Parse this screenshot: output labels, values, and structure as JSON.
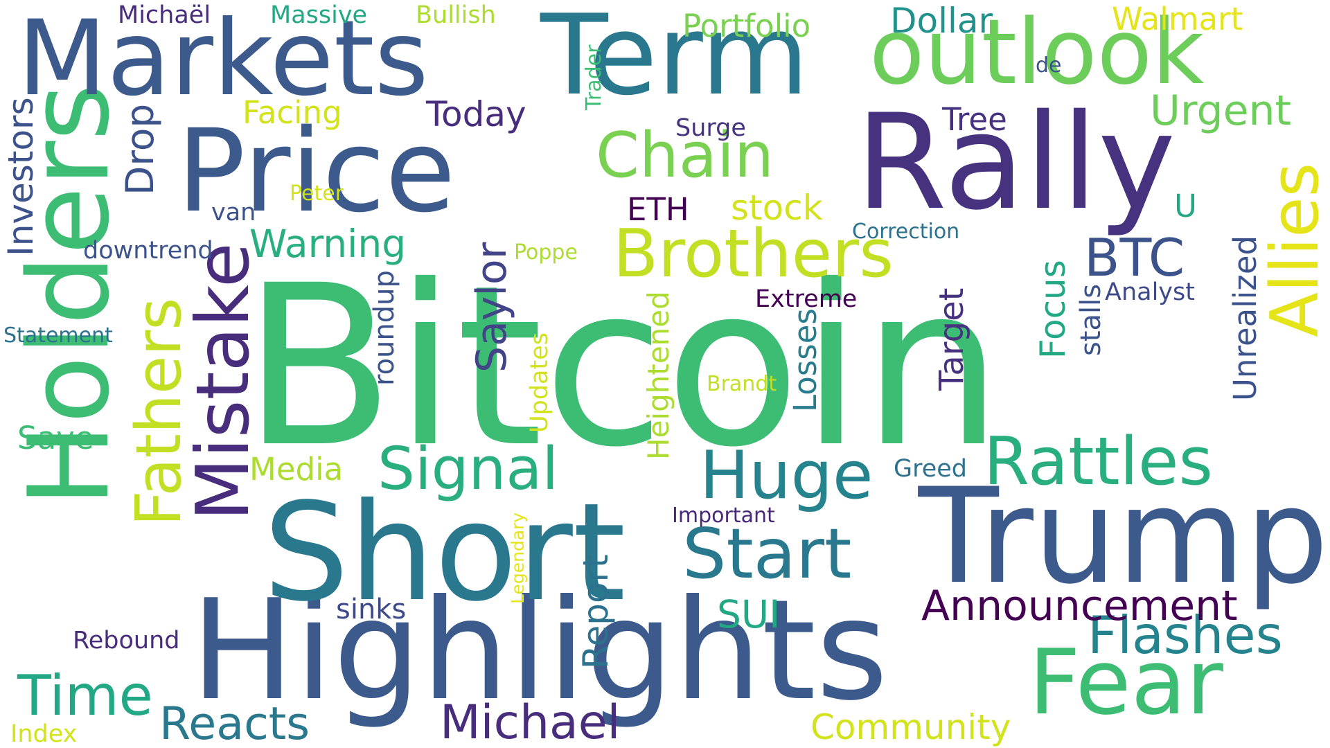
{
  "words": [
    {
      "text": "Bitcoin",
      "color": "#3dbc74",
      "rotated": false
    },
    {
      "text": "Highlights",
      "color": "#3d5a8c",
      "rotated": false
    },
    {
      "text": "Short",
      "color": "#2a788e",
      "rotated": false
    },
    {
      "text": "Trump",
      "color": "#3d5a8c",
      "rotated": false
    },
    {
      "text": "Price",
      "color": "#3d5a8c",
      "rotated": false
    },
    {
      "text": "Rally",
      "color": "#46327e",
      "rotated": false
    },
    {
      "text": "Holders",
      "color": "#3dbc74",
      "rotated": true
    },
    {
      "text": "Markets",
      "color": "#3d5a8c",
      "rotated": false
    },
    {
      "text": "Term",
      "color": "#2a788e",
      "rotated": false
    },
    {
      "text": "outlook",
      "color": "#6ccd5a",
      "rotated": false
    },
    {
      "text": "Fear",
      "color": "#3dbc74",
      "rotated": false
    },
    {
      "text": "Mistake",
      "color": "#472d7b",
      "rotated": true
    },
    {
      "text": "Brothers",
      "color": "#c2df23",
      "rotated": false
    },
    {
      "text": "Start",
      "color": "#2a788e",
      "rotated": false
    },
    {
      "text": "Rattles",
      "color": "#29af7f",
      "rotated": false
    },
    {
      "text": "Fathers",
      "color": "#c2df23",
      "rotated": true
    },
    {
      "text": "Allies",
      "color": "#e4e419",
      "rotated": true
    },
    {
      "text": "Chain",
      "color": "#7ad151",
      "rotated": false
    },
    {
      "text": "Huge",
      "color": "#25838e",
      "rotated": false
    },
    {
      "text": "Signal",
      "color": "#29af7f",
      "rotated": false
    },
    {
      "text": "Flashes",
      "color": "#25838e",
      "rotated": false
    },
    {
      "text": "Time",
      "color": "#22a884",
      "rotated": false
    },
    {
      "text": "Michael",
      "color": "#472d7b",
      "rotated": false
    },
    {
      "text": "Reacts",
      "color": "#2a788e",
      "rotated": false
    },
    {
      "text": "Announcement",
      "color": "#440154",
      "rotated": false
    },
    {
      "text": "Urgent",
      "color": "#6ccd5a",
      "rotated": false
    },
    {
      "text": "Saylor",
      "color": "#414487",
      "rotated": true
    },
    {
      "text": "Investors",
      "color": "#3b528b",
      "rotated": true
    },
    {
      "text": "Drop",
      "color": "#3b528b",
      "rotated": true
    },
    {
      "text": "Warning",
      "color": "#29af7f",
      "rotated": false
    },
    {
      "text": "BTC",
      "color": "#3b528b",
      "rotated": false
    },
    {
      "text": "Today",
      "color": "#472d7b",
      "rotated": false
    },
    {
      "text": "Dollar",
      "color": "#21918c",
      "rotated": false
    },
    {
      "text": "Portfolio",
      "color": "#7ad151",
      "rotated": false
    },
    {
      "text": "Community",
      "color": "#d2e21b",
      "rotated": false
    },
    {
      "text": "Report",
      "color": "#2c728e",
      "rotated": true
    },
    {
      "text": "Target",
      "color": "#46327e",
      "rotated": true
    },
    {
      "text": "Focus",
      "color": "#22a884",
      "rotated": true
    },
    {
      "text": "SUI",
      "color": "#22a884",
      "rotated": false
    },
    {
      "text": "stock",
      "color": "#d2e21b",
      "rotated": false
    },
    {
      "text": "Losses",
      "color": "#287c8e",
      "rotated": true
    },
    {
      "text": "Unrealized",
      "color": "#3b528b",
      "rotated": true
    },
    {
      "text": "Heightened",
      "color": "#addc30",
      "rotated": true
    },
    {
      "text": "Walmart",
      "color": "#e4e419",
      "rotated": false
    },
    {
      "text": "ETH",
      "color": "#440154",
      "rotated": false
    },
    {
      "text": "Tree",
      "color": "#46327e",
      "rotated": false
    },
    {
      "text": "Facing",
      "color": "#d2e21b",
      "rotated": false
    },
    {
      "text": "Media",
      "color": "#addc30",
      "rotated": false
    },
    {
      "text": "Save",
      "color": "#3dbc74",
      "rotated": false
    },
    {
      "text": "roundup",
      "color": "#3b528b",
      "rotated": true
    },
    {
      "text": "stalls",
      "color": "#3b528b",
      "rotated": true
    },
    {
      "text": "sinks",
      "color": "#3e4989",
      "rotated": false
    },
    {
      "text": "Updates",
      "color": "#d2e21b",
      "rotated": true
    },
    {
      "text": "U",
      "color": "#22a884",
      "rotated": false
    },
    {
      "text": "Bullish",
      "color": "#addc30",
      "rotated": false
    },
    {
      "text": "Massive",
      "color": "#22a884",
      "rotated": false
    },
    {
      "text": "Michaël",
      "color": "#472d7b",
      "rotated": false
    },
    {
      "text": "downtrend",
      "color": "#3b528b",
      "rotated": false
    },
    {
      "text": "Extreme",
      "color": "#440154",
      "rotated": false
    },
    {
      "text": "Analyst",
      "color": "#3e4989",
      "rotated": false
    },
    {
      "text": "Index",
      "color": "#d2e21b",
      "rotated": false
    },
    {
      "text": "Rebound",
      "color": "#472d7b",
      "rotated": false
    },
    {
      "text": "Greed",
      "color": "#2c728e",
      "rotated": false
    },
    {
      "text": "Important",
      "color": "#482878",
      "rotated": false
    },
    {
      "text": "Surge",
      "color": "#46327e",
      "rotated": false
    },
    {
      "text": "van",
      "color": "#3b528b",
      "rotated": false
    },
    {
      "text": "Poppe",
      "color": "#addc30",
      "rotated": false
    },
    {
      "text": "Trader",
      "color": "#3dbc74",
      "rotated": true
    },
    {
      "text": "de",
      "color": "#3b528b",
      "rotated": false
    },
    {
      "text": "Correction",
      "color": "#2c728e",
      "rotated": false
    },
    {
      "text": "Statement",
      "color": "#2c728e",
      "rotated": false
    },
    {
      "text": "Peter",
      "color": "#d2e21b",
      "rotated": false
    },
    {
      "text": "Brandt",
      "color": "#c2df23",
      "rotated": false
    },
    {
      "text": "Legendary",
      "color": "#e4e419",
      "rotated": true
    }
  ]
}
